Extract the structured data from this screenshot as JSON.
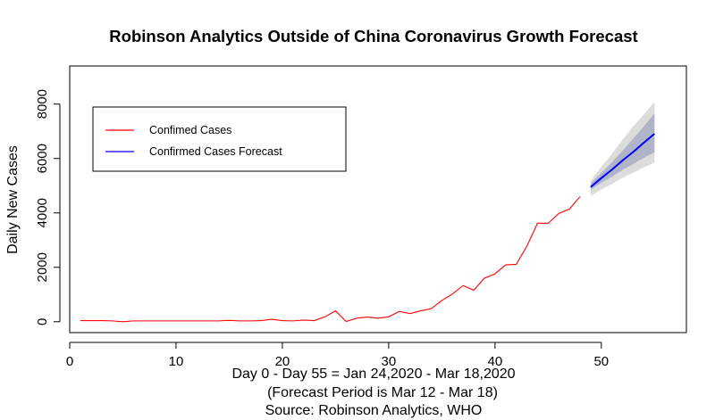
{
  "chart_data": {
    "type": "line",
    "title": "Robinson Analytics Outside of China Coronavirus Growth Forecast",
    "xlabel_lines": [
      "Day 0 - Day 55 = Jan 24,2020 - Mar 18,2020",
      "(Forecast Period is Mar 12 - Mar 18)",
      "Source: Robinson Analytics, WHO"
    ],
    "ylabel": "Daily New Cases",
    "xlim": [
      0,
      58
    ],
    "ylim": [
      -400,
      9400
    ],
    "xticks": [
      0,
      10,
      20,
      30,
      40,
      50
    ],
    "yticks": [
      0,
      2000,
      4000,
      6000,
      8000
    ],
    "grid": false,
    "legend_position": "top-left",
    "colors": {
      "confirmed": "#ff0000",
      "forecast": "#0000ff",
      "band_80": "#b0b4c8",
      "band_95": "#dcdcdc"
    },
    "series": [
      {
        "name": "Confimed Cases",
        "x": [
          1,
          2,
          3,
          4,
          5,
          6,
          7,
          8,
          9,
          10,
          11,
          12,
          13,
          14,
          15,
          16,
          17,
          18,
          19,
          20,
          21,
          22,
          23,
          24,
          25,
          26,
          27,
          28,
          29,
          30,
          31,
          32,
          33,
          34,
          35,
          36,
          37,
          38,
          39,
          40,
          41,
          42,
          43,
          44,
          45,
          46,
          47,
          48
        ],
        "y": [
          40,
          40,
          40,
          30,
          0,
          30,
          30,
          30,
          30,
          30,
          30,
          30,
          30,
          30,
          50,
          30,
          30,
          40,
          90,
          40,
          30,
          60,
          40,
          180,
          400,
          10,
          130,
          170,
          130,
          180,
          380,
          300,
          400,
          480,
          780,
          1020,
          1330,
          1160,
          1600,
          1760,
          2090,
          2110,
          2780,
          3620,
          3620,
          3980,
          4140,
          4600
        ]
      },
      {
        "name": "Confirmed Cases Forecast",
        "x": [
          49,
          50,
          51,
          52,
          53,
          54,
          55
        ],
        "y": [
          4950,
          5280,
          5590,
          5930,
          6240,
          6580,
          6910
        ],
        "band_80_lower": [
          4850,
          5110,
          5330,
          5580,
          5800,
          6030,
          6230
        ],
        "band_80_upper": [
          5080,
          5470,
          5860,
          6290,
          6730,
          7180,
          7660
        ],
        "band_95_lower": [
          4620,
          4860,
          5060,
          5290,
          5480,
          5670,
          5840
        ],
        "band_95_upper": [
          5180,
          5700,
          6170,
          6690,
          7180,
          7620,
          8080
        ]
      }
    ]
  }
}
